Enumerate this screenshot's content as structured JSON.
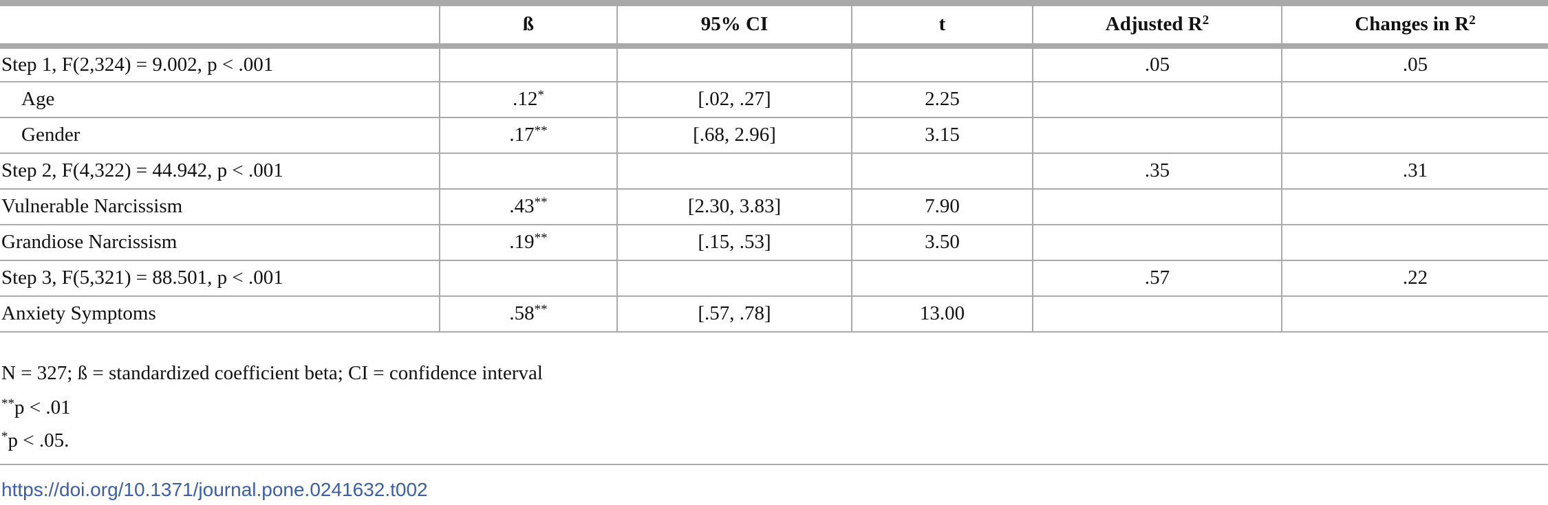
{
  "table": {
    "header": [
      {
        "text": "ß"
      },
      {
        "text": "95% CI"
      },
      {
        "text": "t"
      },
      {
        "text": "Adjusted R",
        "sup": "2"
      },
      {
        "text": "Changes in R",
        "sup": "2"
      }
    ],
    "rows": [
      {
        "label": "Step 1, F(2,324) = 9.002, p < .001",
        "adj_r2": ".05",
        "change_r2": ".05"
      },
      {
        "label": "Age",
        "indent": true,
        "beta": {
          "text": ".12",
          "sup": "*"
        },
        "ci": "[.02, .27]",
        "t": "2.25"
      },
      {
        "label": "Gender",
        "indent": true,
        "beta": {
          "text": ".17",
          "sup": "**"
        },
        "ci": "[.68, 2.96]",
        "t": "3.15"
      },
      {
        "label": "Step 2, F(4,322) = 44.942, p < .001",
        "adj_r2": ".35",
        "change_r2": ".31"
      },
      {
        "label": "Vulnerable Narcissism",
        "beta": {
          "text": ".43",
          "sup": "**"
        },
        "ci": "[2.30, 3.83]",
        "t": "7.90"
      },
      {
        "label": "Grandiose Narcissism",
        "beta": {
          "text": ".19",
          "sup": "**"
        },
        "ci": "[.15, .53]",
        "t": "3.50"
      },
      {
        "label": "Step 3, F(5,321) = 88.501, p < .001",
        "adj_r2": ".57",
        "change_r2": ".22"
      },
      {
        "label": "Anxiety Symptoms",
        "beta": {
          "text": ".58",
          "sup": "**"
        },
        "ci": "[.57, .78]",
        "t": "13.00"
      }
    ]
  },
  "notes": [
    {
      "text": "N = 327; ß = standardized coefficient beta; CI = confidence interval"
    },
    {
      "sup": "**",
      "text": "p < .01"
    },
    {
      "sup": "*",
      "text": "p < .05."
    }
  ],
  "doi": "https://doi.org/10.1371/journal.pone.0241632.t002"
}
